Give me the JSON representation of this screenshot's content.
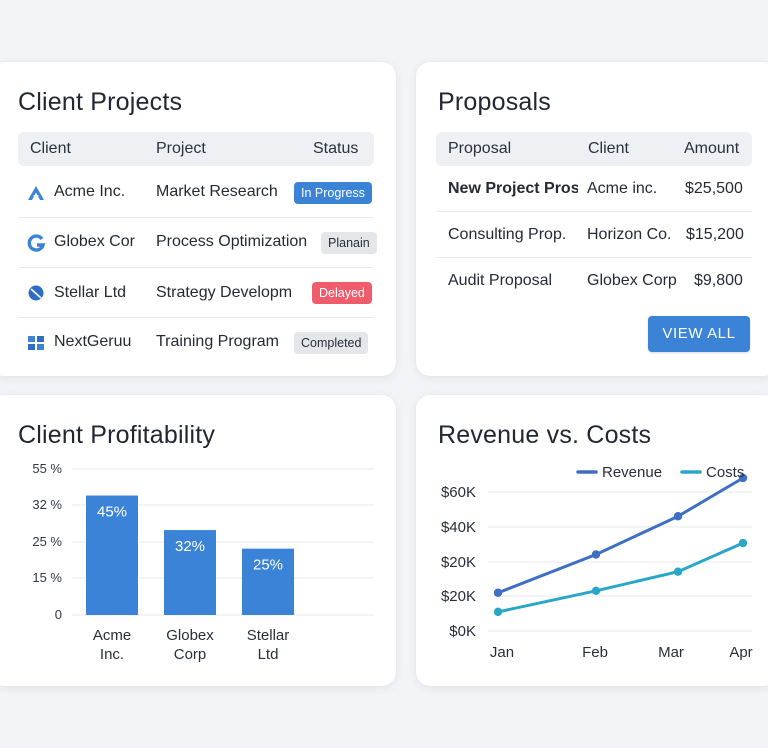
{
  "client_projects": {
    "title": "Client Projects",
    "columns": [
      "Client",
      "Project",
      "Status"
    ],
    "rows": [
      {
        "client": "Acme Inc.",
        "project": "Market Research",
        "status": "In Progress",
        "logo": "acme-logo-icon"
      },
      {
        "client": "Globex Cor",
        "project": "Process Optimization",
        "status": "Planain",
        "logo": "globex-logo-icon"
      },
      {
        "client": "Stellar Ltd",
        "project": "Strategy Developm",
        "status": "Delayed",
        "logo": "stellar-logo-icon"
      },
      {
        "client": "NextGeruu",
        "project": "Training Program",
        "status": "Completed",
        "logo": "nextgen-logo-icon"
      }
    ]
  },
  "proposals": {
    "title": "Proposals",
    "columns": [
      "Proposal",
      "Client",
      "Amount"
    ],
    "rows": [
      {
        "proposal": "New Project Pros",
        "client": "Acme inc.",
        "amount": "$25,500"
      },
      {
        "proposal": "Consulting Prop.",
        "client": "Horizon Co.",
        "amount": "$15,200"
      },
      {
        "proposal": "Audit Proposal",
        "client": "Globex Corp",
        "amount": "$9,800"
      }
    ],
    "view_all_label": "VIEW ALL"
  },
  "colors": {
    "accent": "#3a83d6",
    "revenue_line": "#3f6fc4",
    "costs_line": "#2aa6c8",
    "delayed": "#ef5d6c",
    "neutral_badge": "#e4e6ea"
  },
  "chart_data": [
    {
      "type": "bar",
      "title": "Client Profitability",
      "categories": [
        "Acme Inc.",
        "Globex Corp",
        "Stellar Ltd"
      ],
      "values": [
        45,
        32,
        25
      ],
      "data_labels": [
        "45%",
        "32%",
        "25%"
      ],
      "ytick_labels": [
        "55 %",
        "32 %",
        "25 %",
        "15 %",
        "0"
      ],
      "xlabel": "",
      "ylabel": "",
      "grid": true
    },
    {
      "type": "line",
      "title": "Revenue vs. Costs",
      "categories": [
        "Jan",
        "Feb",
        "Mar",
        "Apr"
      ],
      "series": [
        {
          "name": "Revenue",
          "values": [
            20000,
            40000,
            60000,
            80000
          ]
        },
        {
          "name": "Costs",
          "values": [
            10000,
            21000,
            31000,
            46000
          ]
        }
      ],
      "ytick_labels": [
        "$60K",
        "$40K",
        "$20K",
        "$20K",
        "$0K"
      ],
      "ylim": [
        0,
        80000
      ],
      "legend": "top-right",
      "grid": true
    }
  ]
}
